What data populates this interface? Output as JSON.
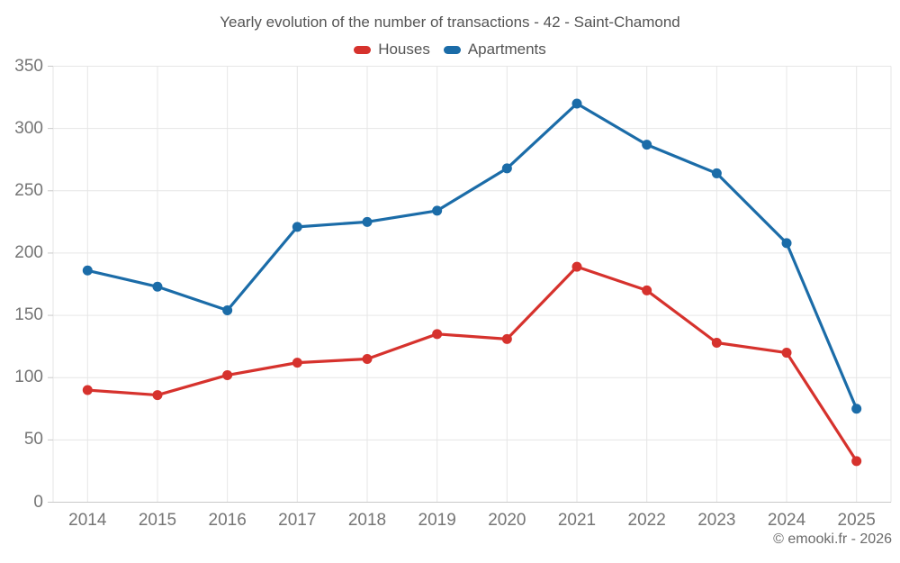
{
  "header": {
    "title": "Yearly evolution of the number of transactions - 42 - Saint-Chamond"
  },
  "footer": {
    "text": "© emooki.fr - 2026"
  },
  "colors": {
    "houses": "#d6322d",
    "apartments": "#1b6ca8",
    "grid": "#e6e6e6",
    "axis": "#c9c9c9",
    "tick_label": "#757575",
    "title_text": "#545454",
    "footer_text": "#6b6b6b"
  },
  "chart_data": {
    "type": "line",
    "title": "Yearly evolution of the number of transactions - 42 - Saint-Chamond",
    "xlabel": "",
    "ylabel": "",
    "categories": [
      2014,
      2015,
      2016,
      2017,
      2018,
      2019,
      2020,
      2021,
      2022,
      2023,
      2024,
      2025
    ],
    "series": [
      {
        "name": "Houses",
        "color": "#d6322d",
        "values": [
          90,
          86,
          102,
          112,
          115,
          135,
          131,
          189,
          170,
          128,
          120,
          33
        ]
      },
      {
        "name": "Apartments",
        "color": "#1b6ca8",
        "values": [
          186,
          173,
          154,
          221,
          225,
          234,
          268,
          320,
          287,
          264,
          208,
          75
        ]
      }
    ],
    "ylim": [
      0,
      350
    ],
    "yticks": [
      0,
      50,
      100,
      150,
      200,
      250,
      300,
      350
    ],
    "grid": true,
    "legend_position": "top",
    "marker": "circle"
  }
}
